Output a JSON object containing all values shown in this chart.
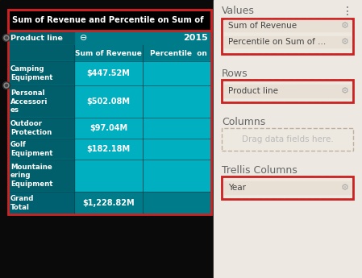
{
  "bg_color": "#ede8e2",
  "teal_dark": "#005f6b",
  "teal_mid": "#007b8a",
  "teal_light": "#00afc0",
  "black_bg": "#000000",
  "white": "#ffffff",
  "red_border": "#cc2222",
  "title_text": "Sum of Revenue and Percentile on Sum of",
  "title_bg": "#000000",
  "title_color": "#ffffff",
  "year": "2015",
  "col_header1": "Sum of Revenue",
  "col_header2": "Percentile  on",
  "product_lines": [
    "Camping\nEquipment",
    "Personal\nAccessori\nes",
    "Outdoor\nProtection",
    "Golf\nEquipment",
    "Mountaine\nering\nEquipment",
    "Grand\nTotal"
  ],
  "revenues": [
    "$447.52M",
    "$502.08M",
    "$97.04M",
    "$182.18M",
    "",
    "$1,228.82M"
  ],
  "is_grand_total": [
    false,
    false,
    false,
    false,
    false,
    true
  ],
  "values_items": [
    "Sum of Revenue",
    "Percentile on Sum of ..."
  ],
  "rows_item": "Product line",
  "columns_placeholder": "Drag data fields here.",
  "trellis_item": "Year",
  "item_bg": "#e8e0d5",
  "section_title_color": "#666666",
  "item_text_color": "#444444",
  "gear_color": "#aaaaaa",
  "dashed_border_color": "#c0b0a0",
  "panel_bg": "#ede8e2"
}
